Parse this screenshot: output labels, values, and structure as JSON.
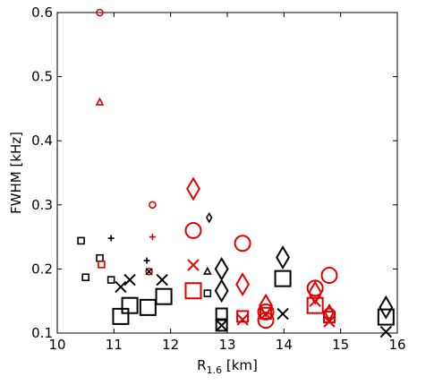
{
  "chart_data": {
    "type": "scatter",
    "title": "",
    "xlabel": {
      "main": "R",
      "sub": "1.6",
      "unit": " [km]"
    },
    "ylabel": "FWHM [kHz]",
    "xlim": [
      10,
      16
    ],
    "ylim": [
      0.1,
      0.6
    ],
    "xticks": [
      "10",
      "11",
      "12",
      "13",
      "14",
      "15",
      "16"
    ],
    "yticks": [
      "0.1",
      "0.2",
      "0.3",
      "0.4",
      "0.5",
      "0.6"
    ],
    "grid": false,
    "colors": {
      "black": "#000000",
      "red": "#e00000"
    },
    "points": [
      {
        "x": 10.75,
        "y": 0.6,
        "marker": "circle",
        "size": "small",
        "color": "red"
      },
      {
        "x": 10.75,
        "y": 0.46,
        "marker": "triangle",
        "size": "small",
        "color": "red"
      },
      {
        "x": 10.42,
        "y": 0.244,
        "marker": "square",
        "size": "small",
        "color": "black"
      },
      {
        "x": 10.5,
        "y": 0.187,
        "marker": "square",
        "size": "small",
        "color": "black"
      },
      {
        "x": 10.75,
        "y": 0.217,
        "marker": "square",
        "size": "small",
        "color": "black"
      },
      {
        "x": 10.78,
        "y": 0.207,
        "marker": "square",
        "size": "small",
        "color": "red"
      },
      {
        "x": 10.95,
        "y": 0.248,
        "marker": "plus",
        "size": "small",
        "color": "black"
      },
      {
        "x": 10.95,
        "y": 0.183,
        "marker": "square",
        "size": "small",
        "color": "black"
      },
      {
        "x": 11.12,
        "y": 0.172,
        "marker": "x",
        "size": "medium",
        "color": "black"
      },
      {
        "x": 11.28,
        "y": 0.183,
        "marker": "x",
        "size": "medium",
        "color": "black"
      },
      {
        "x": 11.12,
        "y": 0.126,
        "marker": "square",
        "size": "large",
        "color": "black"
      },
      {
        "x": 11.28,
        "y": 0.143,
        "marker": "square",
        "size": "large",
        "color": "black"
      },
      {
        "x": 11.6,
        "y": 0.14,
        "marker": "square",
        "size": "large",
        "color": "black"
      },
      {
        "x": 11.88,
        "y": 0.157,
        "marker": "square",
        "size": "large",
        "color": "black"
      },
      {
        "x": 11.85,
        "y": 0.183,
        "marker": "x",
        "size": "medium",
        "color": "black"
      },
      {
        "x": 11.68,
        "y": 0.3,
        "marker": "circle",
        "size": "small",
        "color": "red"
      },
      {
        "x": 11.68,
        "y": 0.25,
        "marker": "plus",
        "size": "small",
        "color": "red"
      },
      {
        "x": 11.58,
        "y": 0.213,
        "marker": "plus",
        "size": "small",
        "color": "black"
      },
      {
        "x": 11.62,
        "y": 0.196,
        "marker": "circle",
        "size": "small",
        "color": "red"
      },
      {
        "x": 11.62,
        "y": 0.196,
        "marker": "x",
        "size": "small",
        "color": "black"
      },
      {
        "x": 12.4,
        "y": 0.325,
        "marker": "diamond",
        "size": "large",
        "color": "red"
      },
      {
        "x": 12.4,
        "y": 0.26,
        "marker": "circle",
        "size": "large",
        "color": "red"
      },
      {
        "x": 12.4,
        "y": 0.206,
        "marker": "x",
        "size": "medium",
        "color": "red"
      },
      {
        "x": 12.4,
        "y": 0.166,
        "marker": "square",
        "size": "large",
        "color": "red"
      },
      {
        "x": 12.68,
        "y": 0.28,
        "marker": "diamond",
        "size": "small",
        "color": "black"
      },
      {
        "x": 12.65,
        "y": 0.196,
        "marker": "triangle",
        "size": "small",
        "color": "black"
      },
      {
        "x": 12.65,
        "y": 0.162,
        "marker": "square",
        "size": "small",
        "color": "black"
      },
      {
        "x": 12.9,
        "y": 0.2,
        "marker": "diamond",
        "size": "large",
        "color": "black"
      },
      {
        "x": 12.9,
        "y": 0.166,
        "marker": "diamond",
        "size": "large",
        "color": "black"
      },
      {
        "x": 12.9,
        "y": 0.13,
        "marker": "square",
        "size": "medium",
        "color": "black"
      },
      {
        "x": 12.9,
        "y": 0.112,
        "marker": "square",
        "size": "medium",
        "color": "black"
      },
      {
        "x": 12.9,
        "y": 0.112,
        "marker": "x",
        "size": "medium",
        "color": "black"
      },
      {
        "x": 13.27,
        "y": 0.24,
        "marker": "circle",
        "size": "large",
        "color": "red"
      },
      {
        "x": 13.27,
        "y": 0.176,
        "marker": "diamond",
        "size": "large",
        "color": "red"
      },
      {
        "x": 13.27,
        "y": 0.126,
        "marker": "square",
        "size": "medium",
        "color": "red"
      },
      {
        "x": 13.27,
        "y": 0.121,
        "marker": "x",
        "size": "medium",
        "color": "red"
      },
      {
        "x": 13.68,
        "y": 0.143,
        "marker": "diamond",
        "size": "large",
        "color": "red"
      },
      {
        "x": 13.68,
        "y": 0.133,
        "marker": "circle",
        "size": "large",
        "color": "red"
      },
      {
        "x": 13.68,
        "y": 0.131,
        "marker": "square",
        "size": "medium",
        "color": "red"
      },
      {
        "x": 13.68,
        "y": 0.12,
        "marker": "circle",
        "size": "large",
        "color": "red"
      },
      {
        "x": 13.68,
        "y": 0.13,
        "marker": "x",
        "size": "medium",
        "color": "red"
      },
      {
        "x": 13.98,
        "y": 0.218,
        "marker": "diamond",
        "size": "large",
        "color": "black"
      },
      {
        "x": 13.98,
        "y": 0.185,
        "marker": "square",
        "size": "large",
        "color": "black"
      },
      {
        "x": 13.98,
        "y": 0.13,
        "marker": "x",
        "size": "medium",
        "color": "black"
      },
      {
        "x": 14.55,
        "y": 0.17,
        "marker": "circle",
        "size": "large",
        "color": "red"
      },
      {
        "x": 14.55,
        "y": 0.163,
        "marker": "diamond",
        "size": "large",
        "color": "red"
      },
      {
        "x": 14.55,
        "y": 0.143,
        "marker": "square",
        "size": "large",
        "color": "red"
      },
      {
        "x": 14.55,
        "y": 0.15,
        "marker": "x",
        "size": "medium",
        "color": "red"
      },
      {
        "x": 14.8,
        "y": 0.19,
        "marker": "circle",
        "size": "large",
        "color": "red"
      },
      {
        "x": 14.8,
        "y": 0.13,
        "marker": "circle",
        "size": "medium",
        "color": "red"
      },
      {
        "x": 14.8,
        "y": 0.125,
        "marker": "square",
        "size": "medium",
        "color": "red"
      },
      {
        "x": 14.8,
        "y": 0.132,
        "marker": "diamond",
        "size": "medium",
        "color": "red"
      },
      {
        "x": 14.8,
        "y": 0.118,
        "marker": "x",
        "size": "medium",
        "color": "red"
      },
      {
        "x": 15.8,
        "y": 0.14,
        "marker": "diamond",
        "size": "large",
        "color": "black"
      },
      {
        "x": 15.8,
        "y": 0.125,
        "marker": "square",
        "size": "large",
        "color": "black"
      },
      {
        "x": 15.8,
        "y": 0.102,
        "marker": "x",
        "size": "medium",
        "color": "black"
      }
    ]
  }
}
